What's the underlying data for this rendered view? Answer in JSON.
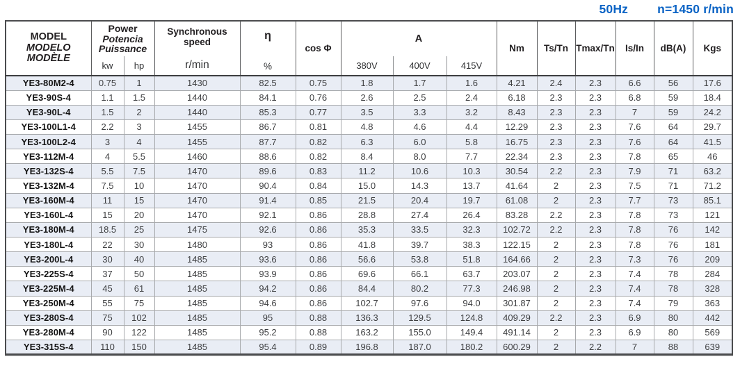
{
  "note": {
    "frequency": "50Hz",
    "speed": "n=1450 r/min",
    "accent_color": "#0a63c5"
  },
  "table": {
    "headers": {
      "model": {
        "en": "MODEL",
        "es": "MODELO",
        "fr": "MODÈLE"
      },
      "power": {
        "en": "Power",
        "es": "Potencia",
        "fr": "Puissance",
        "sub_kw": "kw",
        "sub_hp": "hp"
      },
      "sync": {
        "line1": "Synchronous",
        "line2": "speed",
        "unit": "r/min"
      },
      "efficiency": {
        "symbol": "η",
        "unit": "%"
      },
      "power_factor": "cos Φ",
      "current": {
        "title": "A",
        "sub_380": "380V",
        "sub_400": "400V",
        "sub_415": "415V"
      },
      "torque": "Nm",
      "ts_tn": "Ts/Tn",
      "tmax_tn": "Tmax/Tn",
      "is_in": "Is/In",
      "noise": "dB(A)",
      "weight": "Kgs"
    },
    "stripe_color": "#e9edf5",
    "rows": [
      [
        "YE3-80M2-4",
        "0.75",
        "1",
        "1430",
        "82.5",
        "0.75",
        "1.8",
        "1.7",
        "1.6",
        "4.21",
        "2.4",
        "2.3",
        "6.6",
        "56",
        "17.6"
      ],
      [
        "YE3-90S-4",
        "1.1",
        "1.5",
        "1440",
        "84.1",
        "0.76",
        "2.6",
        "2.5",
        "2.4",
        "6.18",
        "2.3",
        "2.3",
        "6.8",
        "59",
        "18.4"
      ],
      [
        "YE3-90L-4",
        "1.5",
        "2",
        "1440",
        "85.3",
        "0.77",
        "3.5",
        "3.3",
        "3.2",
        "8.43",
        "2.3",
        "2.3",
        "7",
        "59",
        "24.2"
      ],
      [
        "YE3-100L1-4",
        "2.2",
        "3",
        "1455",
        "86.7",
        "0.81",
        "4.8",
        "4.6",
        "4.4",
        "12.29",
        "2.3",
        "2.3",
        "7.6",
        "64",
        "29.7"
      ],
      [
        "YE3-100L2-4",
        "3",
        "4",
        "1455",
        "87.7",
        "0.82",
        "6.3",
        "6.0",
        "5.8",
        "16.75",
        "2.3",
        "2.3",
        "7.6",
        "64",
        "41.5"
      ],
      [
        "YE3-112M-4",
        "4",
        "5.5",
        "1460",
        "88.6",
        "0.82",
        "8.4",
        "8.0",
        "7.7",
        "22.34",
        "2.3",
        "2.3",
        "7.8",
        "65",
        "46"
      ],
      [
        "YE3-132S-4",
        "5.5",
        "7.5",
        "1470",
        "89.6",
        "0.83",
        "11.2",
        "10.6",
        "10.3",
        "30.54",
        "2.2",
        "2.3",
        "7.9",
        "71",
        "63.2"
      ],
      [
        "YE3-132M-4",
        "7.5",
        "10",
        "1470",
        "90.4",
        "0.84",
        "15.0",
        "14.3",
        "13.7",
        "41.64",
        "2",
        "2.3",
        "7.5",
        "71",
        "71.2"
      ],
      [
        "YE3-160M-4",
        "11",
        "15",
        "1470",
        "91.4",
        "0.85",
        "21.5",
        "20.4",
        "19.7",
        "61.08",
        "2",
        "2.3",
        "7.7",
        "73",
        "85.1"
      ],
      [
        "YE3-160L-4",
        "15",
        "20",
        "1470",
        "92.1",
        "0.86",
        "28.8",
        "27.4",
        "26.4",
        "83.28",
        "2.2",
        "2.3",
        "7.8",
        "73",
        "121"
      ],
      [
        "YE3-180M-4",
        "18.5",
        "25",
        "1475",
        "92.6",
        "0.86",
        "35.3",
        "33.5",
        "32.3",
        "102.72",
        "2.2",
        "2.3",
        "7.8",
        "76",
        "142"
      ],
      [
        "YE3-180L-4",
        "22",
        "30",
        "1480",
        "93",
        "0.86",
        "41.8",
        "39.7",
        "38.3",
        "122.15",
        "2",
        "2.3",
        "7.8",
        "76",
        "181"
      ],
      [
        "YE3-200L-4",
        "30",
        "40",
        "1485",
        "93.6",
        "0.86",
        "56.6",
        "53.8",
        "51.8",
        "164.66",
        "2",
        "2.3",
        "7.3",
        "76",
        "209"
      ],
      [
        "YE3-225S-4",
        "37",
        "50",
        "1485",
        "93.9",
        "0.86",
        "69.6",
        "66.1",
        "63.7",
        "203.07",
        "2",
        "2.3",
        "7.4",
        "78",
        "284"
      ],
      [
        "YE3-225M-4",
        "45",
        "61",
        "1485",
        "94.2",
        "0.86",
        "84.4",
        "80.2",
        "77.3",
        "246.98",
        "2",
        "2.3",
        "7.4",
        "78",
        "328"
      ],
      [
        "YE3-250M-4",
        "55",
        "75",
        "1485",
        "94.6",
        "0.86",
        "102.7",
        "97.6",
        "94.0",
        "301.87",
        "2",
        "2.3",
        "7.4",
        "79",
        "363"
      ],
      [
        "YE3-280S-4",
        "75",
        "102",
        "1485",
        "95",
        "0.88",
        "136.3",
        "129.5",
        "124.8",
        "409.29",
        "2.2",
        "2.3",
        "6.9",
        "80",
        "442"
      ],
      [
        "YE3-280M-4",
        "90",
        "122",
        "1485",
        "95.2",
        "0.88",
        "163.2",
        "155.0",
        "149.4",
        "491.14",
        "2",
        "2.3",
        "6.9",
        "80",
        "569"
      ],
      [
        "YE3-315S-4",
        "110",
        "150",
        "1485",
        "95.4",
        "0.89",
        "196.8",
        "187.0",
        "180.2",
        "600.29",
        "2",
        "2.2",
        "7",
        "88",
        "639"
      ]
    ]
  }
}
